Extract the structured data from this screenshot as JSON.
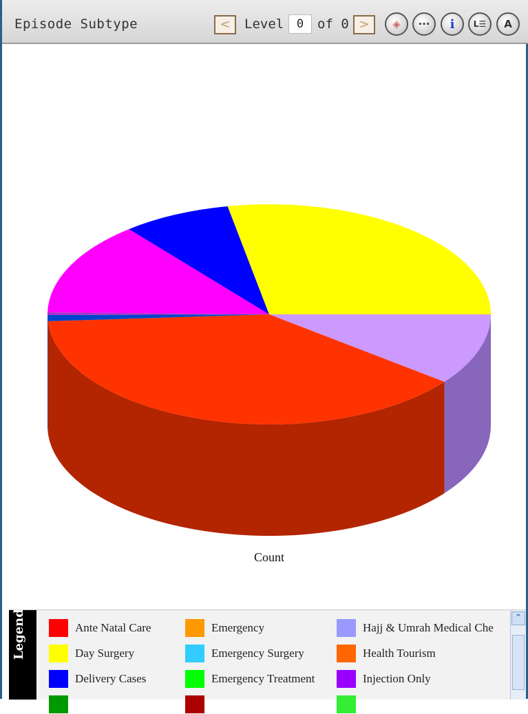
{
  "toolbar": {
    "title": "Episode Subtype",
    "prev_glyph": "<",
    "next_glyph": ">",
    "level_label": "Level",
    "level_value": "0",
    "of_label": "of 0",
    "buttons": [
      {
        "icon": "diamond-icon",
        "glyph": "◈"
      },
      {
        "icon": "more-icon",
        "glyph": "···"
      },
      {
        "icon": "info-icon",
        "glyph": "i"
      },
      {
        "icon": "list-icon",
        "glyph": "L☰"
      },
      {
        "icon": "auto-icon",
        "glyph": "A"
      }
    ]
  },
  "chart_data": {
    "type": "pie",
    "style": "3d",
    "xlabel": "Count",
    "slices": [
      {
        "label": "Hajj & Umrah Medical Check",
        "value": 10.5,
        "color": "#cc99ff",
        "side": "#8866bb"
      },
      {
        "label": "Health Tourism",
        "value": 38.5,
        "color": "#ff3300",
        "side": "#b32400"
      },
      {
        "label": "Delivery Cases",
        "value": 0.9,
        "color": "#0044cc",
        "side": "#0033aa"
      },
      {
        "label": "Injection Only",
        "value": 0.4,
        "color": "#aa33cc",
        "side": "#7a2299"
      },
      {
        "label": "Emergency Treatment",
        "value": 13.8,
        "color": "#ff00ff",
        "side": "#b300b3"
      },
      {
        "label": "Delivery Cases",
        "value": 7.9,
        "color": "#0000ff",
        "side": "#0000aa"
      },
      {
        "label": "Day Surgery",
        "value": 28.0,
        "color": "#ffff00",
        "side": "#bbbb00"
      }
    ]
  },
  "legend": {
    "title": "Legend",
    "items": [
      {
        "label": "Ante Natal Care",
        "color": "#ff0000"
      },
      {
        "label": "Emergency",
        "color": "#ff9900"
      },
      {
        "label": "Hajj & Umrah Medical Che",
        "color": "#9999ff"
      },
      {
        "label": "Day Surgery",
        "color": "#ffff00"
      },
      {
        "label": "Emergency Surgery",
        "color": "#33ccff"
      },
      {
        "label": "Health Tourism",
        "color": "#ff6600"
      },
      {
        "label": "Delivery Cases",
        "color": "#0000ff"
      },
      {
        "label": "Emergency Treatment",
        "color": "#00ff00"
      },
      {
        "label": "Injection Only",
        "color": "#9900ff"
      },
      {
        "label": "",
        "color": "#009900"
      },
      {
        "label": "",
        "color": "#aa0000"
      },
      {
        "label": "",
        "color": "#33ee33"
      }
    ]
  },
  "scroll": {
    "up_glyph": "⌃"
  }
}
